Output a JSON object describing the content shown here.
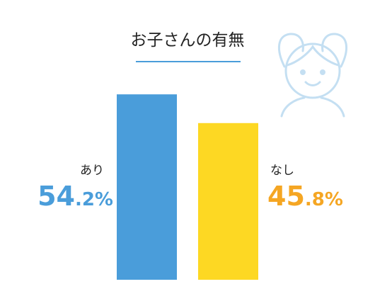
{
  "chart_data": {
    "type": "bar",
    "title": "お子さんの有無",
    "categories": [
      "あり",
      "なし"
    ],
    "values": [
      54.2,
      45.8
    ],
    "value_labels": [
      "54.2%",
      "45.8%"
    ],
    "colors": [
      "#4a9dda",
      "#fdd823"
    ],
    "label_colors": [
      "#4a9dda",
      "#f5a623"
    ]
  }
}
